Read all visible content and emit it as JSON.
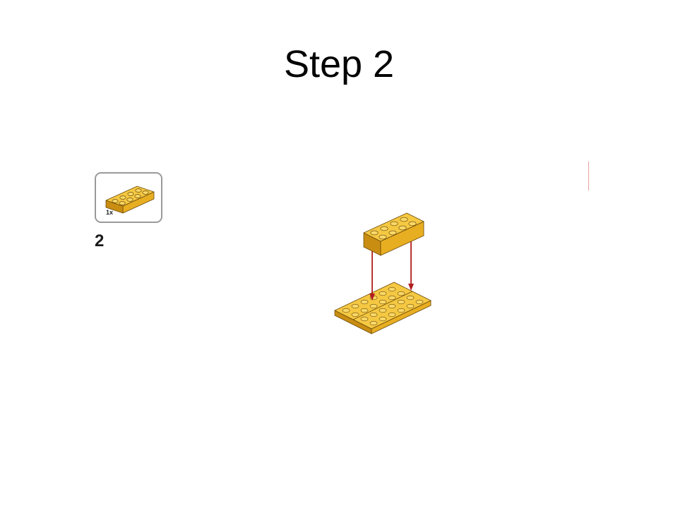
{
  "slide": {
    "title": "Step 2"
  },
  "parts_callout": {
    "quantity": "1x",
    "part": "yellow-2x4-brick"
  },
  "step": {
    "number": "2"
  },
  "colors": {
    "brick_top": "#f5c842",
    "brick_front": "#e8ae22",
    "brick_side": "#c98d12",
    "brick_outline": "#6b4a08",
    "arrow": "#b01e1e",
    "callout_border": "#9a9a9a"
  }
}
